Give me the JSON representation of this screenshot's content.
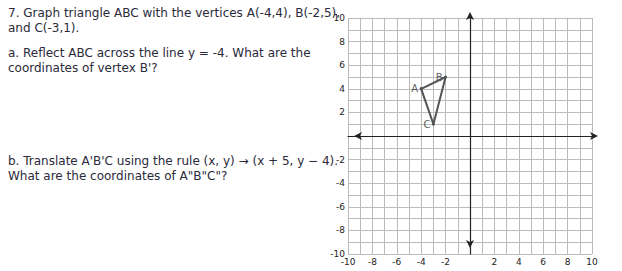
{
  "problem": {
    "intro": [
      "7. Graph triangle ABC with the vertices A(-4,4), B(-2,5),",
      "and C(-3,1)."
    ],
    "part_a": [
      "a. Reflect ABC across the line y = -4.  What are the",
      "coordinates of vertex B'?"
    ],
    "part_b": [
      "b. Translate A'B'C using the rule (x, y) → (x + 5, y − 4).",
      "What are the coordinates of A\"B\"C\"?"
    ]
  },
  "chart_data": {
    "type": "line",
    "x": [
      -4,
      -2,
      -3,
      -4
    ],
    "values": [
      4,
      5,
      1,
      4
    ],
    "color": "#555555",
    "annotations": [
      {
        "text": "A",
        "x": -4,
        "y": 4
      },
      {
        "text": "B",
        "x": -2,
        "y": 5
      },
      {
        "text": "C",
        "x": -3,
        "y": 1
      }
    ],
    "xlim": [
      -10,
      10
    ],
    "xticks": [
      -10,
      -8,
      -6,
      -4,
      -2,
      2,
      4,
      6,
      8,
      10
    ],
    "ylim": [
      -10,
      10
    ],
    "yticks": [
      -10,
      -8,
      -6,
      -4,
      -2,
      2,
      4,
      6,
      8,
      10
    ],
    "grid": true
  }
}
